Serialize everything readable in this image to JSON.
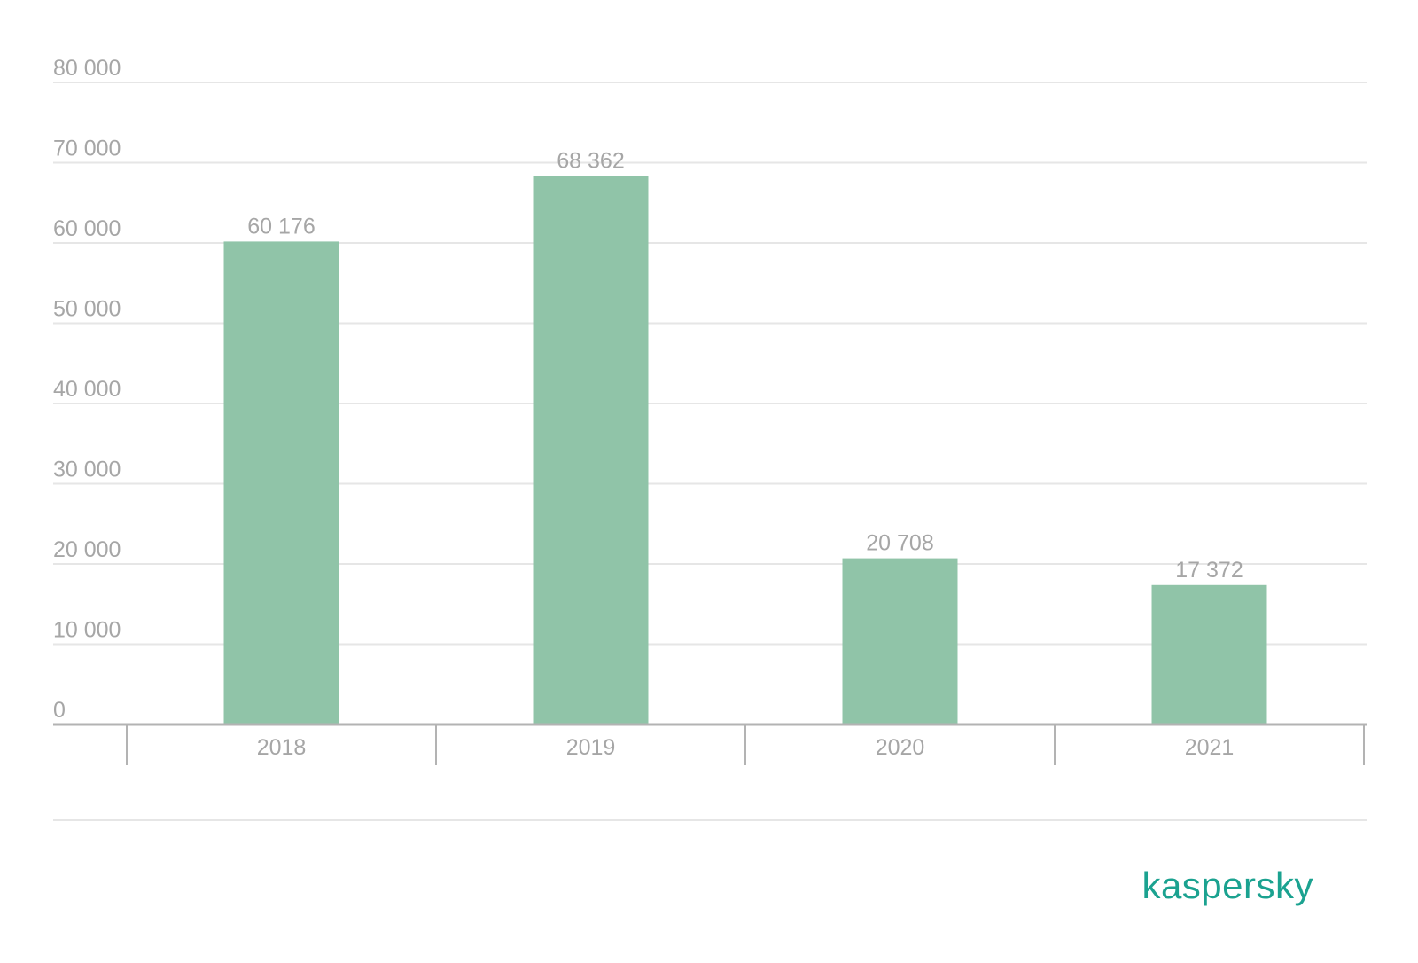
{
  "chart_data": {
    "type": "bar",
    "categories": [
      "2018",
      "2019",
      "2020",
      "2021"
    ],
    "values": [
      60176,
      68362,
      20708,
      17372
    ],
    "value_labels": [
      "60 176",
      "68 362",
      "20 708",
      "17 372"
    ],
    "ylim": [
      0,
      80000
    ],
    "y_ticks": [
      0,
      10000,
      20000,
      30000,
      40000,
      50000,
      60000,
      70000,
      80000
    ],
    "y_tick_labels": [
      "0",
      "10 000",
      "20 000",
      "30 000",
      "40 000",
      "50 000",
      "60 000",
      "70 000",
      "80 000"
    ],
    "grid": true,
    "legend": "none"
  },
  "colors": {
    "bar": "#90c4a8",
    "gridline": "#e6e6e6",
    "axis": "#b3b3b3",
    "text": "#a6a6a6",
    "brand": "#1ba290"
  },
  "brand": {
    "logo_text": "kaspersky"
  }
}
